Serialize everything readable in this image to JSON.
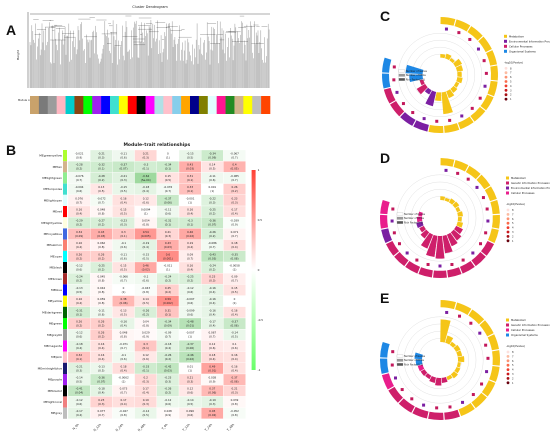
{
  "panels": {
    "a": "A",
    "b": "B",
    "c": "C",
    "d": "D",
    "e": "E"
  },
  "dendrogram": {
    "title": "Cluster Dendrogram",
    "ylabel": "Height",
    "color_label": "Module colors",
    "module_colors": [
      "#c9a26b",
      "#7a7a7a",
      "#9c9c9c",
      "#ffb6c1",
      "#00cdcd",
      "#8b4513",
      "#00ff00",
      "#a020f0",
      "#0000ff",
      "#40e0d0",
      "#ffff00",
      "#ff0000",
      "#000000",
      "#ff00ff",
      "#b0e0e6",
      "#ffc0cb",
      "#87ceeb",
      "#ffa500",
      "#00008b",
      "#808000",
      "#e0ffff",
      "#ff1493",
      "#228b22",
      "#d2b48c",
      "#ffff00",
      "#bebebe",
      "#ff4500"
    ]
  },
  "heatmap": {
    "title": "Module–trait relationships",
    "modules": [
      {
        "name": "MEgreenyellow",
        "color": "#adff2f"
      },
      {
        "name": "MEtan",
        "color": "#d2b48c"
      },
      {
        "name": "MElightgreen",
        "color": "#90ee90"
      },
      {
        "name": "MEturquoise",
        "color": "#40e0d0"
      },
      {
        "name": "MElightcyan",
        "color": "#e0ffff"
      },
      {
        "name": "MEred",
        "color": "#ff0000"
      },
      {
        "name": "MElightyellow",
        "color": "#ffffe0"
      },
      {
        "name": "MEroyalblue",
        "color": "#4169e1"
      },
      {
        "name": "MEsalmon",
        "color": "#fa8072"
      },
      {
        "name": "MEcyan",
        "color": "#00ffff"
      },
      {
        "name": "MEblack",
        "color": "#000000"
      },
      {
        "name": "MEbrown",
        "color": "#a52a2a"
      },
      {
        "name": "MEblue",
        "color": "#0000ff"
      },
      {
        "name": "MEyellow",
        "color": "#ffff00"
      },
      {
        "name": "MEdarkgreen",
        "color": "#006400"
      },
      {
        "name": "MEgreen",
        "color": "#00ff00"
      },
      {
        "name": "MEgrey60",
        "color": "#999999"
      },
      {
        "name": "MEmagenta",
        "color": "#ff00ff"
      },
      {
        "name": "MEpink",
        "color": "#ffc0cb"
      },
      {
        "name": "MEmidnightblue",
        "color": "#191970"
      },
      {
        "name": "MEpurple",
        "color": "#a020f0"
      },
      {
        "name": "MEblack2",
        "color": "#000000"
      },
      {
        "name": "MElightcoral",
        "color": "#f08080"
      },
      {
        "name": "MEgrey",
        "color": "#bebebe"
      }
    ],
    "traits": [
      "N_0h",
      "N_12h",
      "N_24h",
      "N_48h",
      "T_0h",
      "T_12h",
      "T_24h",
      "T_48h"
    ],
    "values": [
      [
        -0.021,
        -0.21,
        -0.11,
        0.21,
        0.0,
        -0.15,
        -0.34,
        -0.067
      ],
      [
        -0.28,
        -0.32,
        -0.37,
        -0.3,
        -0.34,
        0.43,
        0.14,
        0.4
      ],
      [
        -0.076,
        -0.28,
        -0.21,
        -0.64,
        0.15,
        0.31,
        -0.11,
        -0.085
      ],
      [
        -0.094,
        0.13,
        -0.15,
        -0.18,
        -0.076,
        0.33,
        0.001,
        0.26
      ],
      [
        0.076,
        -0.072,
        0.16,
        0.12,
        -0.37,
        -0.001,
        -0.22,
        0.23
      ],
      [
        0.16,
        0.048,
        0.15,
        0.0094,
        -0.11,
        0.16,
        -0.25,
        0.17
      ],
      [
        -0.29,
        -0.27,
        -0.23,
        0.054,
        -0.31,
        -0.3,
        -0.36,
        -0.039
      ],
      [
        0.34,
        0.43,
        0.3,
        0.54,
        0.21,
        0.46,
        -0.26,
        0.071
      ],
      [
        0.16,
        0.062,
        -0.1,
        -0.19,
        0.43,
        0.19,
        -0.086,
        0.18
      ],
      [
        0.26,
        0.26,
        -0.11,
        -0.15,
        0.6,
        0.09,
        -0.43,
        -0.35
      ],
      [
        -0.12,
        -0.25,
        0.15,
        0.46,
        -0.011,
        0.16,
        -0.24,
        -0.0058
      ],
      [
        -0.24,
        0.045,
        -0.066,
        -0.1,
        -0.24,
        -0.25,
        0.23,
        0.09
      ],
      [
        -0.13,
        0.044,
        0.0,
        -0.043,
        0.25,
        -0.12,
        -0.16,
        0.15
      ],
      [
        0.16,
        0.059,
        0.38,
        0.14,
        0.59,
        -0.097,
        -0.16,
        0.0
      ],
      [
        -0.31,
        -0.11,
        0.13,
        -0.26,
        0.31,
        -0.099,
        -0.16,
        0.16
      ],
      [
        0.26,
        0.26,
        -0.16,
        0.04,
        -0.34,
        -0.48,
        -0.17,
        -0.37
      ],
      [
        -0.12,
        0.26,
        0.048,
        0.029,
        -0.09,
        -0.007,
        0.067,
        -0.14
      ],
      [
        -0.18,
        0.16,
        -0.071,
        0.3,
        -0.18,
        -0.37,
        0.12,
        0.1
      ],
      [
        0.32,
        0.16,
        -0.1,
        0.12,
        -0.26,
        -0.46,
        0.18,
        0.16
      ],
      [
        -0.21,
        -0.13,
        0.18,
        -0.33,
        -0.42,
        0.01,
        0.49,
        0.16
      ],
      [
        -0.14,
        -0.36,
        -0.0062,
        0.2,
        -0.23,
        0.21,
        0.038,
        0.37
      ],
      [
        -0.41,
        -0.18,
        0.073,
        0.17,
        -0.26,
        0.12,
        0.37,
        0.21
      ],
      [
        -0.12,
        0.23,
        0.17,
        0.19,
        -0.12,
        -0.14,
        -0.19,
        0.039
      ],
      [
        -0.17,
        0.077,
        -0.047,
        -0.14,
        0.028,
        0.096,
        0.45,
        -0.052
      ]
    ],
    "pvalues": [
      [
        "0.9",
        "0.3",
        "0.6",
        "0.3",
        "1",
        "0.5",
        "0.09",
        "0.7"
      ],
      [
        "0.2",
        "0.1",
        "0.07",
        "0.1",
        "0.1",
        "0.03",
        "0.5",
        "0.05"
      ],
      [
        "0.7",
        "0.2",
        "0.3",
        "5e-04",
        "0.5",
        "0.1",
        "0.6",
        "0.7"
      ],
      [
        "0.6",
        "0.5",
        "0.5",
        "0.4",
        "0.7",
        "0.1",
        "1",
        "0.2"
      ],
      [
        "0.7",
        "0.7",
        "0.4",
        "0.6",
        "0.06",
        "1",
        "0.3",
        "0.3"
      ],
      [
        "0.4",
        "0.8",
        "0.5",
        "1",
        "0.6",
        "0.4",
        "0.2",
        "0.4"
      ],
      [
        "0.2",
        "0.2",
        "0.3",
        "0.8",
        "0.1",
        "0.1",
        "0.07",
        "0.9"
      ],
      [
        "0.09",
        "0.03",
        "0.1",
        "0.005",
        "0.3",
        "0.02",
        "0.2",
        "0.7"
      ],
      [
        "0.4",
        "0.8",
        "0.6",
        "0.4",
        "0.03",
        "0.4",
        "0.7",
        "0.4"
      ],
      [
        "0.2",
        "0.2",
        "0.6",
        "0.5",
        "0.001",
        "0.7",
        "0.03",
        "0.08"
      ],
      [
        "0.6",
        "0.2",
        "0.5",
        "0.02",
        "1",
        "0.4",
        "0.2",
        "1"
      ],
      [
        "0.2",
        "0.8",
        "0.7",
        "0.6",
        "0.2",
        "0.2",
        "0.3",
        "0.7"
      ],
      [
        "0.5",
        "0.8",
        "1",
        "0.8",
        "0.2",
        "0.6",
        "0.4",
        "0.5"
      ],
      [
        "0.4",
        "0.8",
        "0.06",
        "0.5",
        "0.002",
        "0.6",
        "0.4",
        "1"
      ],
      [
        "0.1",
        "0.6",
        "0.5",
        "0.2",
        "0.1",
        "0.6",
        "0.4",
        "0.4"
      ],
      [
        "0.2",
        "0.2",
        "0.4",
        "0.8",
        "0.09",
        "0.01",
        "0.4",
        "0.06"
      ],
      [
        "0.6",
        "0.2",
        "0.8",
        "0.9",
        "0.7",
        "1",
        "0.7",
        "0.5"
      ],
      [
        "0.4",
        "0.4",
        "0.7",
        "0.1",
        "0.4",
        "0.06",
        "0.6",
        "0.6"
      ],
      [
        "0.1",
        "0.4",
        "0.6",
        "0.6",
        "0.2",
        "0.02",
        "0.4",
        "0.4"
      ],
      [
        "0.3",
        "0.5",
        "0.4",
        "0.1",
        "0.03",
        "1",
        "0.01",
        "0.4"
      ],
      [
        "0.5",
        "0.07",
        "1",
        "0.3",
        "0.3",
        "0.3",
        "0.9",
        "0.06"
      ],
      [
        "0.04",
        "0.4",
        "0.7",
        "0.4",
        "0.2",
        "0.6",
        "0.06",
        "0.3"
      ],
      [
        "0.6",
        "0.3",
        "0.4",
        "0.3",
        "0.6",
        "0.5",
        "0.3",
        "0.8"
      ],
      [
        "0.4",
        "0.7",
        "0.8",
        "0.5",
        "0.9",
        "0.6",
        "0.02",
        "0.8"
      ]
    ],
    "scale": [
      "1",
      "0.5",
      "0",
      "-0.5",
      "-1"
    ]
  },
  "circos": [
    {
      "legend": [
        "Metabolism",
        "Environmental Information Processing",
        "Cellular Processes",
        "Organismal Systems"
      ],
      "legend_colors": [
        "#f5c518",
        "#7b1fa2",
        "#ce1f6a",
        "#1e88e5"
      ],
      "seg_colors": [
        "#f5c518",
        "#f5c518",
        "#f5c518",
        "#f5c518",
        "#f5c518",
        "#f5c518",
        "#f5c518",
        "#f5c518",
        "#f5c518",
        "#f5c518",
        "#f5c518",
        "#f5c518",
        "#7b1fa2",
        "#7b1fa2",
        "#ce1f6a",
        "#ce1f6a",
        "#1e88e5",
        "#1e88e5"
      ],
      "bars": [
        0.15,
        0.2,
        0.12,
        0.3,
        0.25,
        0.18,
        0.22,
        0.14,
        0.2,
        0.3,
        0.9,
        0.35,
        0.6,
        0.2,
        0.4,
        0.15,
        0.55,
        0.7
      ],
      "inner_labels": [
        "Number of Genes",
        "Number of DEGs",
        "Rich Factor(0-1)"
      ]
    },
    {
      "legend": [
        "Metabolism",
        "Genetic Information Processing",
        "Environmental Information Processing",
        "Cellular Processes"
      ],
      "legend_colors": [
        "#f5c518",
        "#ce1f6a",
        "#7b1fa2",
        "#e91e8c"
      ],
      "seg_colors": [
        "#f5c518",
        "#f5c518",
        "#f5c518",
        "#f5c518",
        "#f5c518",
        "#f5c518",
        "#f5c518",
        "#f5c518",
        "#ce1f6a",
        "#ce1f6a",
        "#ce1f6a",
        "#ce1f6a",
        "#ce1f6a",
        "#ce1f6a",
        "#ce1f6a",
        "#ce1f6a",
        "#ce1f6a",
        "#7b1fa2",
        "#e91e8c",
        "#e91e8c"
      ],
      "bars": [
        0.15,
        0.12,
        0.18,
        0.2,
        0.14,
        0.2,
        0.15,
        0.22,
        0.3,
        0.4,
        0.5,
        0.7,
        0.9,
        0.85,
        0.6,
        0.3,
        0.2,
        0.25,
        0.2,
        0.15
      ],
      "inner_labels": [
        "Number of Genes",
        "Number of DEGs",
        "Rich Factor(0-1)"
      ]
    },
    {
      "legend": [
        "Metabolism",
        "Genetic Information Processing",
        "Cellular Processes",
        "Organismal Systems"
      ],
      "legend_colors": [
        "#f5c518",
        "#ce1f6a",
        "#e91e8c",
        "#1e88e5"
      ],
      "seg_colors": [
        "#f5c518",
        "#f5c518",
        "#f5c518",
        "#f5c518",
        "#f5c518",
        "#f5c518",
        "#f5c518",
        "#f5c518",
        "#f5c518",
        "#f5c518",
        "#ce1f6a",
        "#ce1f6a",
        "#ce1f6a",
        "#ce1f6a",
        "#ce1f6a",
        "#e91e8c",
        "#1e88e5",
        "#1e88e5"
      ],
      "bars": [
        0.9,
        0.3,
        0.15,
        0.2,
        0.18,
        0.25,
        0.12,
        0.16,
        0.2,
        0.14,
        0.2,
        0.3,
        0.22,
        0.15,
        0.18,
        0.2,
        0.25,
        0.3
      ],
      "inner_labels": [
        "Number of Genes",
        "Number of DEGs",
        "Rich Factor(0-1)"
      ]
    }
  ],
  "circos_scale_title": "-log10(Pvalue)",
  "circos_scale": [
    "8",
    "7",
    "6",
    "5",
    "4",
    "3",
    "2",
    "1"
  ]
}
